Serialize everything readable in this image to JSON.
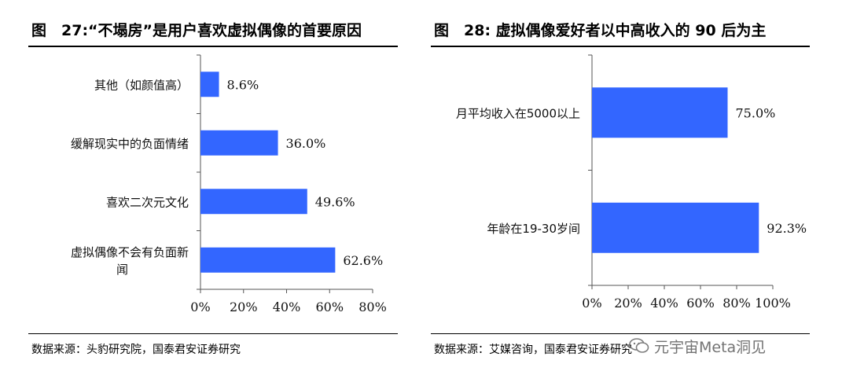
{
  "left": {
    "title": "图　27:“不塌房”是用户喜欢虚拟偶像的首要原因",
    "source": "数据来源：头豹研究院，国泰君安证券研究"
  },
  "right": {
    "title": "图　28:  虚拟偶像爱好者以中高收入的 90 后为主",
    "source": "数据来源：艾媒咨询，国泰君安证券研究"
  },
  "watermark": "元宇宙Meta洞见",
  "colors": {
    "bar": "#3366ff"
  },
  "chart_data": [
    {
      "type": "bar",
      "orientation": "horizontal",
      "categories": [
        "其他（如颜值高）",
        "缓解现实中的负面情绪",
        "喜欢二次元文化",
        "虚拟偶像不会有负面新闻"
      ],
      "category_lines": [
        [
          "其他（如颜值高）"
        ],
        [
          "缓解现实中的负面情绪"
        ],
        [
          "喜欢二次元文化"
        ],
        [
          "虚拟偶像不会有负面新",
          "闻"
        ]
      ],
      "values": [
        8.6,
        36.0,
        49.6,
        62.6
      ],
      "data_labels": [
        "8.6%",
        "36.0%",
        "49.6%",
        "62.6%"
      ],
      "xlim": [
        0,
        80
      ],
      "x_ticks": [
        "0%",
        "20%",
        "40%",
        "60%",
        "80%"
      ]
    },
    {
      "type": "bar",
      "orientation": "horizontal",
      "categories": [
        "月平均收入在5000以上",
        "年龄在19-30岁间"
      ],
      "category_lines": [
        [
          "月平均收入在5000以上"
        ],
        [
          "年龄在19-30岁间"
        ]
      ],
      "values": [
        75.0,
        92.3
      ],
      "data_labels": [
        "75.0%",
        "92.3%"
      ],
      "xlim": [
        0,
        100
      ],
      "x_ticks": [
        "0%",
        "20%",
        "40%",
        "60%",
        "80%",
        "100%"
      ]
    }
  ]
}
